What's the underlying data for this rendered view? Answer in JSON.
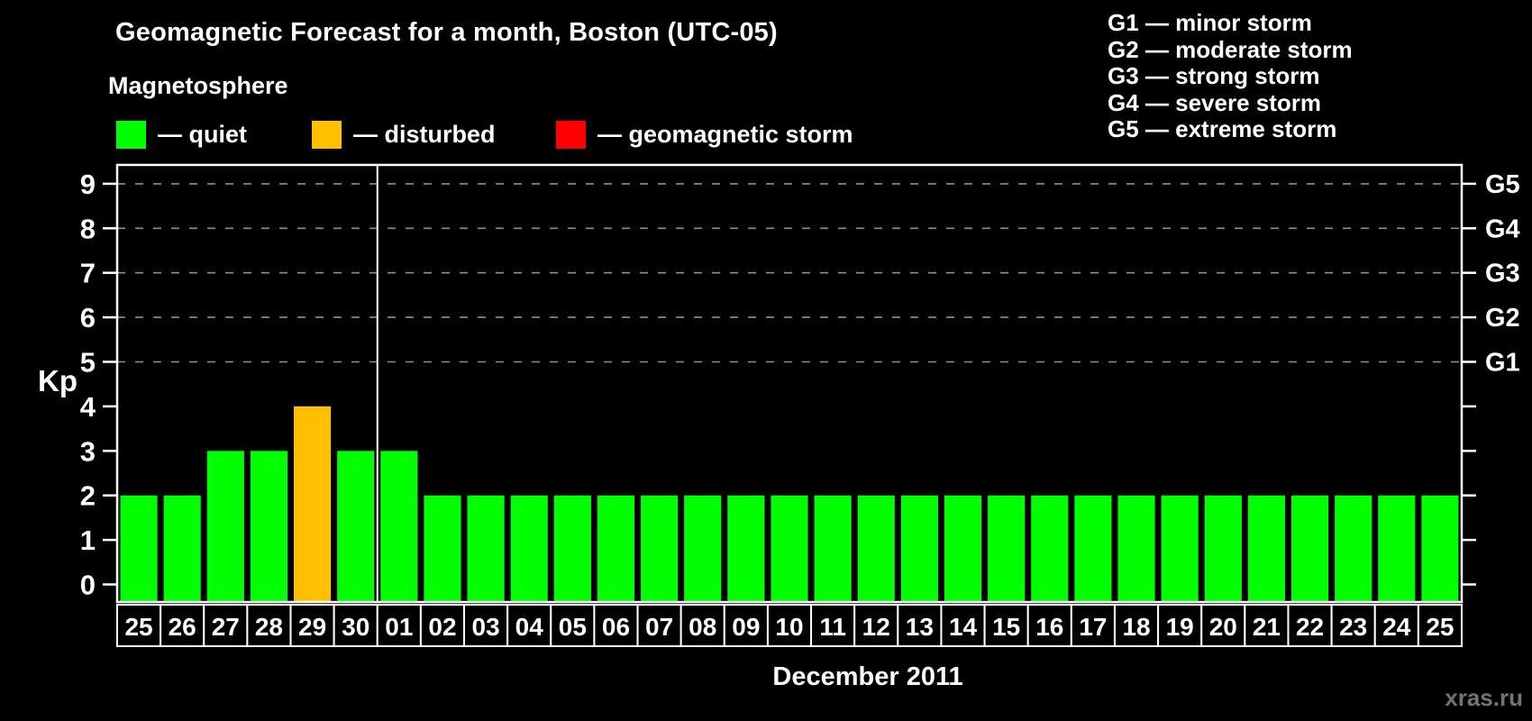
{
  "page": {
    "background": "#000000",
    "text_color": "#ffffff"
  },
  "header": {
    "title": "Geomagnetic Forecast for a month, Boston (UTC-05)",
    "subtitle": "Magnetosphere",
    "legend": {
      "items": [
        {
          "name": "quiet",
          "label": "— quiet",
          "color": "#00ff00"
        },
        {
          "name": "disturbed",
          "label": "— disturbed",
          "color": "#ffc000"
        },
        {
          "name": "storm",
          "label": "— geomagnetic storm",
          "color": "#ff0000"
        }
      ]
    },
    "g_scale": {
      "lines": [
        "G1 — minor storm",
        "G2 — moderate storm",
        "G3 — strong storm",
        "G4 — severe storm",
        "G5 — extreme storm"
      ]
    }
  },
  "chart_data": {
    "type": "bar",
    "title": "Geomagnetic Forecast for a month, Boston (UTC-05)",
    "ylabel": "Kp",
    "xlabel": "December 2011",
    "categories": [
      "25",
      "26",
      "27",
      "28",
      "29",
      "30",
      "01",
      "02",
      "03",
      "04",
      "05",
      "06",
      "07",
      "08",
      "09",
      "10",
      "11",
      "12",
      "13",
      "14",
      "15",
      "16",
      "17",
      "18",
      "19",
      "20",
      "21",
      "22",
      "23",
      "24",
      "25"
    ],
    "values": [
      2,
      2,
      3,
      3,
      4,
      3,
      3,
      2,
      2,
      2,
      2,
      2,
      2,
      2,
      2,
      2,
      2,
      2,
      2,
      2,
      2,
      2,
      2,
      2,
      2,
      2,
      2,
      2,
      2,
      2,
      2
    ],
    "ylim": [
      0,
      9
    ],
    "y_ticks": [
      0,
      1,
      2,
      3,
      4,
      5,
      6,
      7,
      8,
      9
    ],
    "gridline_levels": [
      5,
      6,
      7,
      8,
      9
    ],
    "right_axis": [
      {
        "level": 5,
        "label": "G1"
      },
      {
        "level": 6,
        "label": "G2"
      },
      {
        "level": 7,
        "label": "G3"
      },
      {
        "level": 8,
        "label": "G4"
      },
      {
        "level": 9,
        "label": "G5"
      }
    ],
    "colors": {
      "quiet": "#00ff00",
      "disturbed": "#ffc000",
      "storm": "#ff0000"
    },
    "thresholds": {
      "disturbed_at": 4,
      "storm_at": 5
    },
    "month_divider_after_index": 6,
    "grid": "dashed horizontal lines at G-storm levels only",
    "legend_position": "top-left"
  },
  "footer": {
    "caption": "December 2011",
    "watermark": "xras.ru"
  }
}
